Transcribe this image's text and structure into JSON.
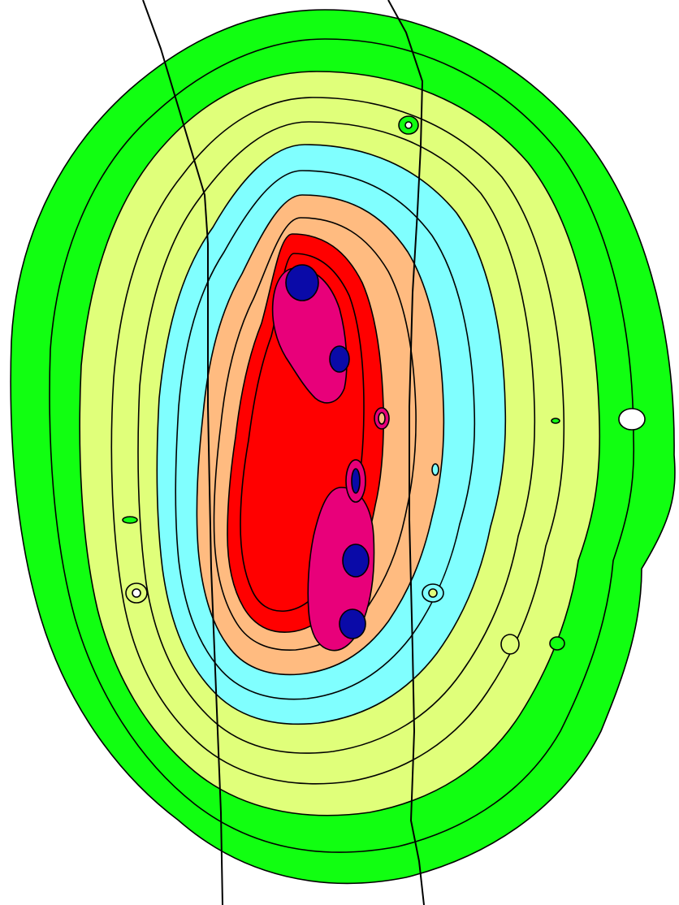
{
  "colors": {
    "background": "#ffffff",
    "band_green": "#11ff11",
    "band_yellow": "#e0ff7a",
    "band_cyan": "#80ffff",
    "band_orange": "#ffbb80",
    "band_red": "#ff0000",
    "band_magenta": "#e8007a",
    "band_blue": "#0a0aa8",
    "contour_line": "#000000",
    "boundary_line": "#9b5a14"
  },
  "map": {
    "type": "filled contour map",
    "band_order": [
      "band_green",
      "band_yellow",
      "band_cyan",
      "band_orange",
      "band_red",
      "band_magenta",
      "band_blue"
    ],
    "contour_levels_drawn": 13,
    "peaks_count": 4,
    "boundary_lines_count": 2,
    "legend": "none",
    "axes": "none"
  }
}
